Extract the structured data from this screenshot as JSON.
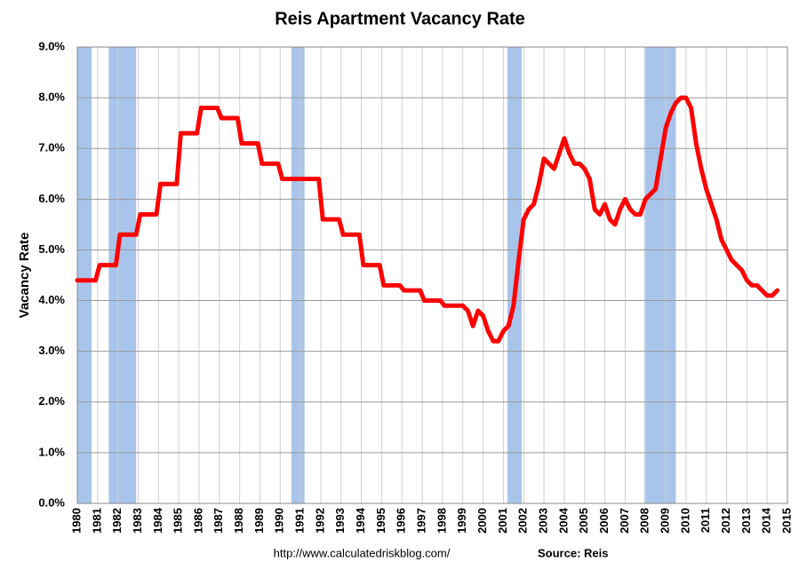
{
  "chart_data": {
    "type": "line",
    "title": "Reis Apartment Vacancy Rate",
    "y_label": "Vacancy Rate",
    "footer_url": "http://www.calculatedriskblog.com/",
    "footer_source": "Source: Reis",
    "x": [
      1980,
      1980.9,
      1981.1,
      1981.9,
      1982.1,
      1982.9,
      1983.1,
      1983.9,
      1984.1,
      1984.9,
      1985.1,
      1985.9,
      1986.1,
      1986.9,
      1987.1,
      1987.9,
      1988.1,
      1988.9,
      1989.1,
      1989.9,
      1990.1,
      1991.9,
      1992.1,
      1992.9,
      1993.1,
      1993.9,
      1994.1,
      1994.9,
      1995.1,
      1995.9,
      1996.1,
      1996.9,
      1997.1,
      1997.9,
      1998.1,
      1998.9,
      1999,
      1999.25,
      1999.5,
      1999.75,
      2000,
      2000.25,
      2000.5,
      2000.75,
      2001,
      2001.25,
      2001.5,
      2001.75,
      2002,
      2002.25,
      2002.5,
      2002.75,
      2003,
      2003.25,
      2003.5,
      2003.75,
      2004,
      2004.25,
      2004.5,
      2004.75,
      2005,
      2005.25,
      2005.5,
      2005.75,
      2006,
      2006.25,
      2006.5,
      2006.75,
      2007,
      2007.25,
      2007.5,
      2007.75,
      2008,
      2008.25,
      2008.5,
      2008.75,
      2009,
      2009.25,
      2009.5,
      2009.75,
      2010,
      2010.25,
      2010.5,
      2010.75,
      2011,
      2011.25,
      2011.5,
      2011.75,
      2012,
      2012.25,
      2012.5,
      2012.75,
      2013,
      2013.25,
      2013.5,
      2013.75,
      2014,
      2014.25,
      2014.5
    ],
    "series": [
      {
        "color": "#ff0000",
        "values": [
          4.4,
          4.4,
          4.7,
          4.7,
          5.3,
          5.3,
          5.7,
          5.7,
          6.3,
          6.3,
          7.3,
          7.3,
          7.8,
          7.8,
          7.6,
          7.6,
          7.1,
          7.1,
          6.7,
          6.7,
          6.4,
          6.4,
          5.6,
          5.6,
          5.3,
          5.3,
          4.7,
          4.7,
          4.3,
          4.3,
          4.2,
          4.2,
          4.0,
          4.0,
          3.9,
          3.9,
          3.9,
          3.8,
          3.5,
          3.8,
          3.7,
          3.4,
          3.2,
          3.2,
          3.4,
          3.5,
          3.9,
          4.8,
          5.6,
          5.8,
          5.9,
          6.3,
          6.8,
          6.7,
          6.6,
          6.9,
          7.2,
          6.9,
          6.7,
          6.7,
          6.6,
          6.4,
          5.8,
          5.7,
          5.9,
          5.6,
          5.5,
          5.8,
          6.0,
          5.8,
          5.7,
          5.7,
          6.0,
          6.1,
          6.2,
          6.8,
          7.4,
          7.7,
          7.9,
          8.0,
          8.0,
          7.8,
          7.1,
          6.6,
          6.2,
          5.9,
          5.6,
          5.2,
          5.0,
          4.8,
          4.7,
          4.6,
          4.4,
          4.3,
          4.3,
          4.2,
          4.1,
          4.1,
          4.2
        ]
      }
    ],
    "recessions": [
      [
        1980.0,
        1980.7
      ],
      [
        1981.55,
        1982.9
      ],
      [
        1990.55,
        1991.2
      ],
      [
        2001.2,
        2001.9
      ],
      [
        2007.95,
        2009.5
      ]
    ],
    "recession_color": "#a9c4eb",
    "xlim": [
      1980,
      2015
    ],
    "xticks": [
      1980,
      1981,
      1982,
      1983,
      1984,
      1985,
      1986,
      1987,
      1988,
      1989,
      1990,
      1991,
      1992,
      1993,
      1994,
      1995,
      1996,
      1997,
      1998,
      1999,
      2000,
      2001,
      2002,
      2003,
      2004,
      2005,
      2006,
      2007,
      2008,
      2009,
      2010,
      2011,
      2012,
      2013,
      2014,
      2015
    ],
    "ylim": [
      0,
      9
    ],
    "yticks": [
      {
        "value": 0,
        "label": "0.0%"
      },
      {
        "value": 1,
        "label": "1.0%"
      },
      {
        "value": 2,
        "label": "2.0%"
      },
      {
        "value": 3,
        "label": "3.0%"
      },
      {
        "value": 4,
        "label": "4.0%"
      },
      {
        "value": 5,
        "label": "5.0%"
      },
      {
        "value": 6,
        "label": "6.0%"
      },
      {
        "value": 7,
        "label": "7.0%"
      },
      {
        "value": 8,
        "label": "8.0%"
      },
      {
        "value": 9,
        "label": "9.0%"
      }
    ],
    "grid": true
  }
}
